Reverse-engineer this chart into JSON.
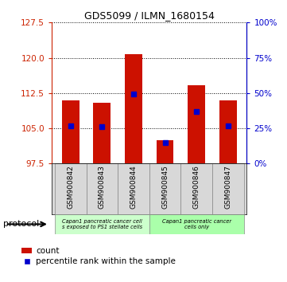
{
  "title": "GDS5099 / ILMN_1680154",
  "samples": [
    "GSM900842",
    "GSM900843",
    "GSM900844",
    "GSM900845",
    "GSM900846",
    "GSM900847"
  ],
  "count_values": [
    111.0,
    110.5,
    120.7,
    102.5,
    114.2,
    111.0
  ],
  "percentile_values": [
    105.5,
    105.3,
    112.3,
    102.0,
    108.5,
    105.5
  ],
  "y_min": 97.5,
  "y_max": 127.5,
  "y_ticks": [
    97.5,
    105.0,
    112.5,
    120.0,
    127.5
  ],
  "right_ticks": [
    0,
    25,
    50,
    75,
    100
  ],
  "right_tick_labels": [
    "0%",
    "25%",
    "50%",
    "75%",
    "100%"
  ],
  "bar_color": "#cc1100",
  "marker_color": "#0000cc",
  "protocol_groups": [
    {
      "label": "Capan1 pancreatic cancer cell\ns exposed to PS1 stellate cells",
      "start": 0,
      "end": 3,
      "color": "#ccffcc"
    },
    {
      "label": "Capan1 pancreatic cancer\ncells only",
      "start": 3,
      "end": 6,
      "color": "#aaffaa"
    }
  ],
  "protocol_label": "protocol",
  "legend_count_label": "count",
  "legend_percentile_label": "percentile rank within the sample",
  "bar_width": 0.55,
  "tick_label_color_left": "#cc2200",
  "tick_label_color_right": "#0000cc",
  "bg_gray": "#d8d8d8",
  "title_fontsize": 9
}
